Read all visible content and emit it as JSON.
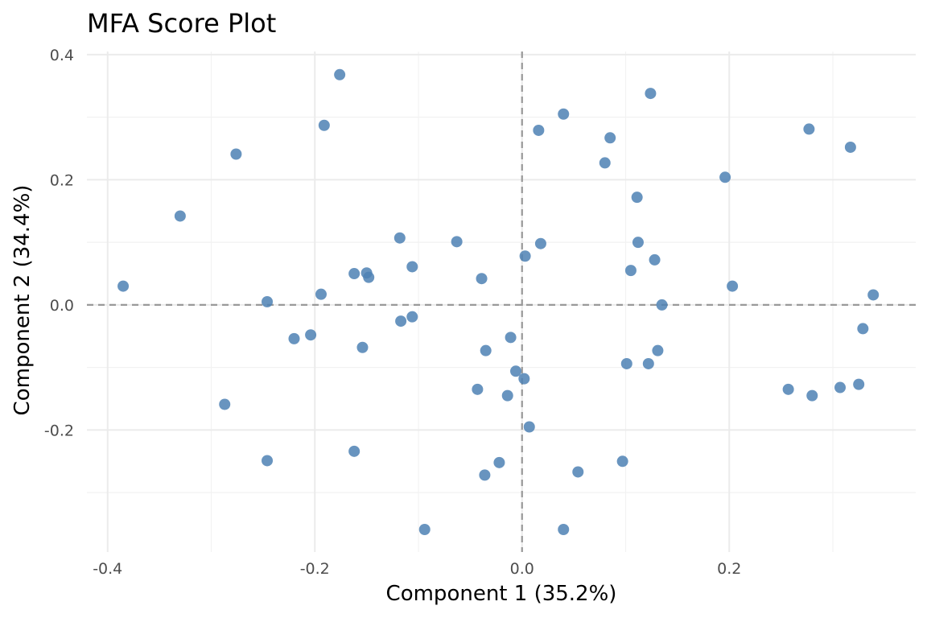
{
  "chart_data": {
    "type": "scatter",
    "title": "MFA Score Plot",
    "xlabel": "Component 1 (35.2%)",
    "ylabel": "Component 2 (34.4%)",
    "xlim": [
      -0.42,
      0.38
    ],
    "ylim": [
      -0.395,
      0.405
    ],
    "x_ticks": [
      -0.4,
      -0.2,
      0.0,
      0.2
    ],
    "x_tick_labels": [
      "-0.4",
      "-0.2",
      "0.0",
      "0.2"
    ],
    "y_ticks": [
      0.4,
      0.2,
      0.0,
      -0.2
    ],
    "y_tick_labels": [
      "0.4",
      "0.2",
      "0.0",
      "-0.2"
    ],
    "x_minor": [
      -0.3,
      -0.1,
      0.1,
      0.3
    ],
    "y_minor": [
      0.3,
      0.1,
      -0.1,
      -0.3
    ],
    "grid": true,
    "reference_lines": {
      "x": 0,
      "y": 0,
      "style": "dashed"
    },
    "point_color": "#4E81B4",
    "points": [
      {
        "x": -0.385,
        "y": 0.03
      },
      {
        "x": -0.33,
        "y": 0.142
      },
      {
        "x": -0.276,
        "y": 0.241
      },
      {
        "x": -0.287,
        "y": -0.159
      },
      {
        "x": -0.246,
        "y": 0.005
      },
      {
        "x": -0.246,
        "y": -0.249
      },
      {
        "x": -0.22,
        "y": -0.054
      },
      {
        "x": -0.204,
        "y": -0.048
      },
      {
        "x": -0.194,
        "y": 0.017
      },
      {
        "x": -0.191,
        "y": 0.287
      },
      {
        "x": -0.176,
        "y": 0.368
      },
      {
        "x": -0.162,
        "y": 0.05
      },
      {
        "x": -0.162,
        "y": -0.234
      },
      {
        "x": -0.154,
        "y": -0.068
      },
      {
        "x": -0.15,
        "y": 0.051
      },
      {
        "x": -0.148,
        "y": 0.044
      },
      {
        "x": -0.118,
        "y": 0.107
      },
      {
        "x": -0.117,
        "y": -0.026
      },
      {
        "x": -0.106,
        "y": 0.061
      },
      {
        "x": -0.106,
        "y": -0.019
      },
      {
        "x": -0.094,
        "y": -0.359
      },
      {
        "x": -0.063,
        "y": 0.101
      },
      {
        "x": -0.043,
        "y": -0.135
      },
      {
        "x": -0.039,
        "y": 0.042
      },
      {
        "x": -0.036,
        "y": -0.272
      },
      {
        "x": -0.035,
        "y": -0.073
      },
      {
        "x": -0.022,
        "y": -0.252
      },
      {
        "x": -0.014,
        "y": -0.145
      },
      {
        "x": -0.011,
        "y": -0.052
      },
      {
        "x": -0.006,
        "y": -0.106
      },
      {
        "x": 0.002,
        "y": -0.118
      },
      {
        "x": 0.003,
        "y": 0.078
      },
      {
        "x": 0.007,
        "y": -0.195
      },
      {
        "x": 0.016,
        "y": 0.279
      },
      {
        "x": 0.018,
        "y": 0.098
      },
      {
        "x": 0.04,
        "y": 0.305
      },
      {
        "x": 0.04,
        "y": -0.359
      },
      {
        "x": 0.054,
        "y": -0.267
      },
      {
        "x": 0.08,
        "y": 0.227
      },
      {
        "x": 0.085,
        "y": 0.267
      },
      {
        "x": 0.097,
        "y": -0.25
      },
      {
        "x": 0.101,
        "y": -0.094
      },
      {
        "x": 0.105,
        "y": 0.055
      },
      {
        "x": 0.111,
        "y": 0.172
      },
      {
        "x": 0.112,
        "y": 0.1
      },
      {
        "x": 0.122,
        "y": -0.094
      },
      {
        "x": 0.124,
        "y": 0.338
      },
      {
        "x": 0.128,
        "y": 0.072
      },
      {
        "x": 0.131,
        "y": -0.073
      },
      {
        "x": 0.135,
        "y": 0.0
      },
      {
        "x": 0.196,
        "y": 0.204
      },
      {
        "x": 0.203,
        "y": 0.03
      },
      {
        "x": 0.257,
        "y": -0.135
      },
      {
        "x": 0.277,
        "y": 0.281
      },
      {
        "x": 0.28,
        "y": -0.145
      },
      {
        "x": 0.307,
        "y": -0.132
      },
      {
        "x": 0.317,
        "y": 0.252
      },
      {
        "x": 0.325,
        "y": -0.127
      },
      {
        "x": 0.329,
        "y": -0.038
      },
      {
        "x": 0.339,
        "y": 0.016
      }
    ]
  }
}
